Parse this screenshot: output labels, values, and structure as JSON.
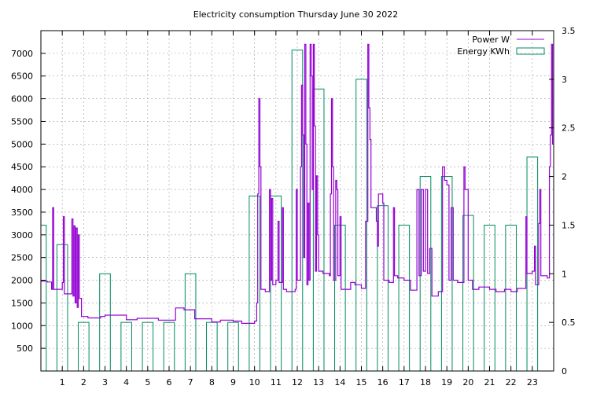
{
  "chart_data": {
    "type": "bar+line",
    "title": "Electricity consumption Thursday June 30 2022",
    "grid": true,
    "legend_position": "top-right",
    "x_axis": {
      "min": 0,
      "max": 24,
      "tick_labels": [
        "1",
        "2",
        "3",
        "4",
        "5",
        "6",
        "7",
        "8",
        "9",
        "10",
        "11",
        "12",
        "13",
        "14",
        "15",
        "16",
        "17",
        "18",
        "19",
        "20",
        "21",
        "22",
        "23"
      ]
    },
    "y_left": {
      "min": 0,
      "max": 7500,
      "ticks": [
        500,
        1000,
        1500,
        2000,
        2500,
        3000,
        3500,
        4000,
        4500,
        5000,
        5500,
        6000,
        6500,
        7000
      ],
      "tick_labels": [
        "500",
        "1000",
        "1500",
        "2000",
        "2500",
        "3000",
        "3500",
        "4000",
        "4500",
        "5000",
        "5500",
        "6000",
        "6500",
        "7000"
      ]
    },
    "y_right": {
      "min": 0,
      "max": 3.5,
      "ticks": [
        0,
        0.5,
        1,
        1.5,
        2,
        2.5,
        3,
        3.5
      ],
      "tick_labels": [
        "0",
        "0.5",
        "1",
        "1.5",
        "2",
        "2.5",
        "3",
        "3.5"
      ]
    },
    "series": [
      {
        "name": "Power W",
        "color": "#9400d3",
        "kind": "step-line",
        "points": [
          [
            0.0,
            1980
          ],
          [
            0.3,
            1960
          ],
          [
            0.5,
            1800
          ],
          [
            0.55,
            3600
          ],
          [
            0.6,
            1800
          ],
          [
            0.8,
            1800
          ],
          [
            1.0,
            1950
          ],
          [
            1.05,
            3400
          ],
          [
            1.1,
            1700
          ],
          [
            1.4,
            1700
          ],
          [
            1.45,
            3350
          ],
          [
            1.5,
            1650
          ],
          [
            1.55,
            3200
          ],
          [
            1.6,
            1500
          ],
          [
            1.65,
            3150
          ],
          [
            1.7,
            1400
          ],
          [
            1.75,
            3000
          ],
          [
            1.8,
            1600
          ],
          [
            1.9,
            1200
          ],
          [
            2.2,
            1170
          ],
          [
            2.8,
            1200
          ],
          [
            3.0,
            1230
          ],
          [
            3.5,
            1230
          ],
          [
            4.0,
            1130
          ],
          [
            4.5,
            1160
          ],
          [
            5.5,
            1120
          ],
          [
            6.0,
            1120
          ],
          [
            6.3,
            1390
          ],
          [
            6.7,
            1350
          ],
          [
            7.2,
            1150
          ],
          [
            8.0,
            1080
          ],
          [
            8.4,
            1120
          ],
          [
            9.0,
            1100
          ],
          [
            9.4,
            1050
          ],
          [
            10.0,
            1100
          ],
          [
            10.1,
            1500
          ],
          [
            10.15,
            3900
          ],
          [
            10.2,
            6000
          ],
          [
            10.25,
            4500
          ],
          [
            10.3,
            1800
          ],
          [
            10.5,
            1750
          ],
          [
            10.7,
            4000
          ],
          [
            10.75,
            2000
          ],
          [
            10.8,
            3800
          ],
          [
            10.85,
            1900
          ],
          [
            11.0,
            2000
          ],
          [
            11.1,
            3300
          ],
          [
            11.15,
            1950
          ],
          [
            11.3,
            3600
          ],
          [
            11.35,
            1800
          ],
          [
            11.5,
            1750
          ],
          [
            11.9,
            1800
          ],
          [
            11.95,
            4000
          ],
          [
            12.0,
            2000
          ],
          [
            12.15,
            4500
          ],
          [
            12.2,
            6300
          ],
          [
            12.25,
            5200
          ],
          [
            12.3,
            2500
          ],
          [
            12.35,
            7200
          ],
          [
            12.4,
            5000
          ],
          [
            12.45,
            1900
          ],
          [
            12.5,
            3700
          ],
          [
            12.55,
            2000
          ],
          [
            12.6,
            7200
          ],
          [
            12.65,
            6500
          ],
          [
            12.7,
            4000
          ],
          [
            12.75,
            7200
          ],
          [
            12.8,
            5400
          ],
          [
            12.85,
            2200
          ],
          [
            12.9,
            4300
          ],
          [
            12.95,
            3000
          ],
          [
            13.0,
            2200
          ],
          [
            13.2,
            2150
          ],
          [
            13.5,
            2100
          ],
          [
            13.55,
            3900
          ],
          [
            13.6,
            6000
          ],
          [
            13.65,
            4500
          ],
          [
            13.7,
            2000
          ],
          [
            13.8,
            4200
          ],
          [
            13.85,
            4000
          ],
          [
            13.9,
            2100
          ],
          [
            14.0,
            3400
          ],
          [
            14.05,
            1800
          ],
          [
            14.3,
            1800
          ],
          [
            14.5,
            1950
          ],
          [
            14.7,
            1900
          ],
          [
            15.0,
            1820
          ],
          [
            15.2,
            3300
          ],
          [
            15.3,
            7200
          ],
          [
            15.35,
            5800
          ],
          [
            15.4,
            5100
          ],
          [
            15.45,
            3600
          ],
          [
            15.7,
            3300
          ],
          [
            15.75,
            2750
          ],
          [
            15.8,
            3900
          ],
          [
            16.0,
            3700
          ],
          [
            16.05,
            2000
          ],
          [
            16.3,
            1950
          ],
          [
            16.5,
            3600
          ],
          [
            16.55,
            2100
          ],
          [
            16.7,
            2050
          ],
          [
            17.0,
            2000
          ],
          [
            17.3,
            1780
          ],
          [
            17.6,
            4000
          ],
          [
            17.7,
            2100
          ],
          [
            17.8,
            4000
          ],
          [
            17.9,
            2200
          ],
          [
            18.0,
            4000
          ],
          [
            18.1,
            2150
          ],
          [
            18.2,
            2700
          ],
          [
            18.3,
            1650
          ],
          [
            18.6,
            1750
          ],
          [
            18.8,
            4500
          ],
          [
            18.9,
            4200
          ],
          [
            19.0,
            4100
          ],
          [
            19.1,
            2000
          ],
          [
            19.2,
            3600
          ],
          [
            19.3,
            2000
          ],
          [
            19.5,
            1950
          ],
          [
            19.8,
            4500
          ],
          [
            19.85,
            4000
          ],
          [
            20.0,
            2000
          ],
          [
            20.2,
            1800
          ],
          [
            20.5,
            1850
          ],
          [
            21.0,
            1800
          ],
          [
            21.3,
            1750
          ],
          [
            21.7,
            1800
          ],
          [
            22.0,
            1750
          ],
          [
            22.3,
            1820
          ],
          [
            22.7,
            3400
          ],
          [
            22.75,
            2150
          ],
          [
            23.0,
            2200
          ],
          [
            23.1,
            2750
          ],
          [
            23.15,
            1900
          ],
          [
            23.3,
            3250
          ],
          [
            23.35,
            4000
          ],
          [
            23.4,
            2100
          ],
          [
            23.7,
            2050
          ],
          [
            23.8,
            4500
          ],
          [
            23.85,
            5200
          ],
          [
            23.9,
            7200
          ],
          [
            23.95,
            5000
          ],
          [
            24.0,
            5000
          ]
        ]
      },
      {
        "name": "Energy KWh",
        "color": "#008b5e",
        "kind": "box",
        "box_width": 0.5,
        "centers": [
          0.0,
          1.0,
          2.0,
          3.0,
          4.0,
          5.0,
          6.0,
          7.0,
          8.0,
          9.0,
          10.0,
          11.0,
          12.0,
          13.0,
          14.0,
          15.0,
          16.0,
          17.0,
          18.0,
          19.0,
          20.0,
          21.0,
          22.0,
          23.0
        ],
        "values": [
          1.5,
          1.3,
          0.5,
          1.0,
          0.5,
          0.5,
          0.5,
          1.0,
          0.5,
          0.5,
          1.8,
          1.8,
          3.3,
          2.9,
          1.5,
          3.0,
          1.7,
          1.5,
          2.0,
          2.0,
          1.6,
          1.5,
          1.5,
          2.2
        ]
      }
    ]
  }
}
